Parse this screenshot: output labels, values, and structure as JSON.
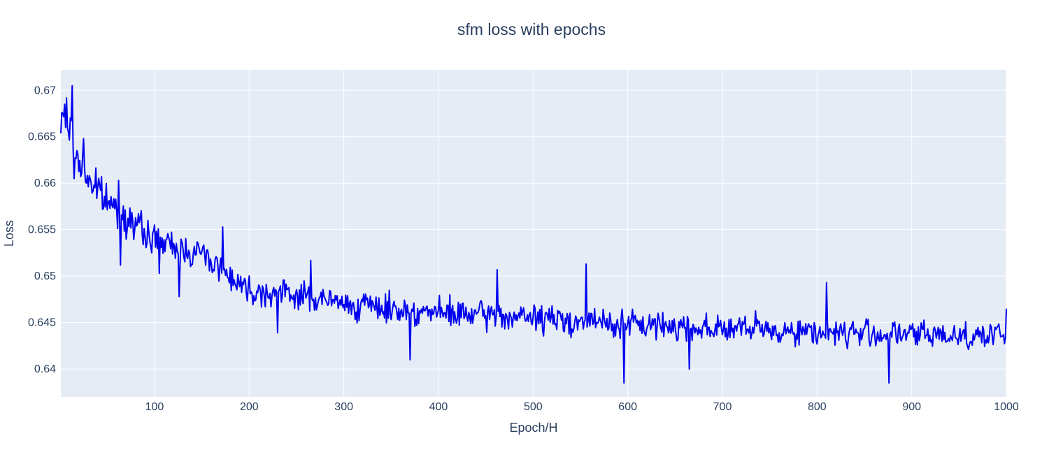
{
  "chart_data": {
    "type": "line",
    "title": "sfm loss with epochs",
    "xlabel": "Epoch/H",
    "ylabel": "Loss",
    "xlim": [
      1,
      1000
    ],
    "ylim": [
      0.637,
      0.6722
    ],
    "xticks": [
      100,
      200,
      300,
      400,
      500,
      600,
      700,
      800,
      900,
      1000
    ],
    "xtick_labels": [
      "100",
      "200",
      "300",
      "400",
      "500",
      "600",
      "700",
      "800",
      "900",
      "1000"
    ],
    "yticks": [
      0.64,
      0.645,
      0.65,
      0.655,
      0.66,
      0.665,
      0.67
    ],
    "ytick_labels": [
      "0.64",
      "0.645",
      "0.65",
      "0.655",
      "0.66",
      "0.665",
      "0.67"
    ],
    "grid": true,
    "legend": "none",
    "colors": {
      "line": "#0000ee",
      "plot_bg": "#e5ecf6",
      "grid": "#ffffff",
      "text": "#2a3f5f"
    },
    "trend_anchors": {
      "x": [
        1,
        5,
        15,
        30,
        50,
        70,
        90,
        120,
        150,
        200,
        250,
        300,
        400,
        500,
        600,
        700,
        800,
        900,
        1000
      ],
      "y": [
        0.6655,
        0.668,
        0.6635,
        0.6605,
        0.658,
        0.6565,
        0.6545,
        0.653,
        0.6525,
        0.6485,
        0.648,
        0.647,
        0.646,
        0.6455,
        0.6448,
        0.6444,
        0.644,
        0.6437,
        0.6436
      ]
    },
    "noise_amplitude": {
      "x": [
        1,
        100,
        200,
        1000
      ],
      "amp": [
        0.0016,
        0.0012,
        0.0011,
        0.0011
      ]
    },
    "notable_points": [
      {
        "x": 5,
        "y": 0.6685
      },
      {
        "x": 13,
        "y": 0.6705
      },
      {
        "x": 15,
        "y": 0.6605
      },
      {
        "x": 25,
        "y": 0.6648
      },
      {
        "x": 62,
        "y": 0.6603
      },
      {
        "x": 64,
        "y": 0.6512
      },
      {
        "x": 105,
        "y": 0.6503
      },
      {
        "x": 126,
        "y": 0.6478
      },
      {
        "x": 172,
        "y": 0.6553
      },
      {
        "x": 230,
        "y": 0.6439
      },
      {
        "x": 265,
        "y": 0.6517
      },
      {
        "x": 370,
        "y": 0.641
      },
      {
        "x": 462,
        "y": 0.6507
      },
      {
        "x": 556,
        "y": 0.6513
      },
      {
        "x": 596,
        "y": 0.6385
      },
      {
        "x": 665,
        "y": 0.64
      },
      {
        "x": 810,
        "y": 0.6493
      },
      {
        "x": 876,
        "y": 0.6385
      },
      {
        "x": 1000,
        "y": 0.6465
      }
    ]
  }
}
